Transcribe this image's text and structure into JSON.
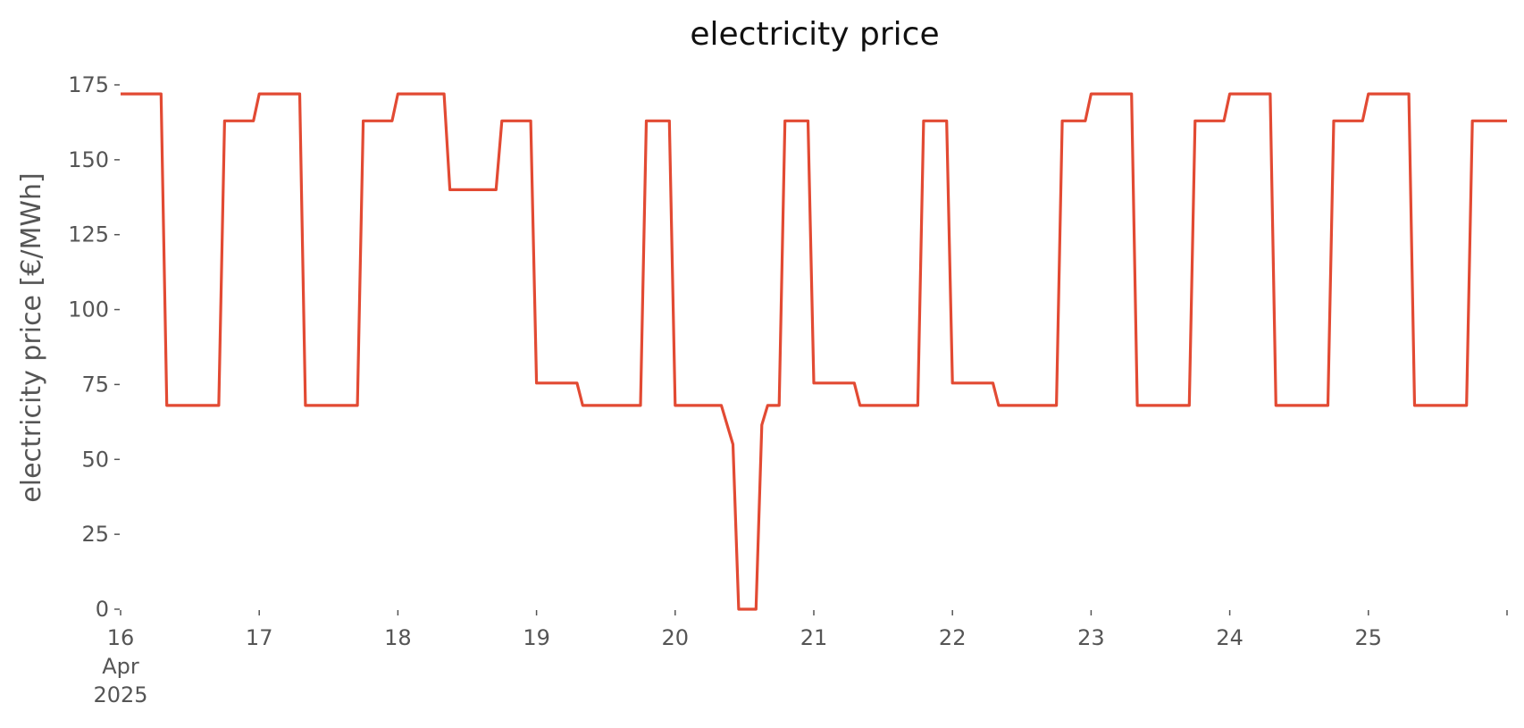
{
  "chart_data": {
    "type": "line",
    "title": "electricity price",
    "xlabel": "",
    "ylabel": "electricity price [€/MWh]",
    "grid": false,
    "legend": "none",
    "line_color": "#e24a33",
    "xlim": [
      "2025-04-16T00:00",
      "2025-04-26T00:00"
    ],
    "ylim": [
      0,
      175
    ],
    "yticks": [
      0,
      25,
      50,
      75,
      100,
      125,
      150,
      175
    ],
    "ytick_labels": [
      "0",
      "25",
      "50",
      "75",
      "100",
      "125",
      "150",
      "175"
    ],
    "xticks": [
      {
        "x": "2025-04-16T00:00",
        "label": [
          "16",
          "Apr",
          "2025"
        ]
      },
      {
        "x": "2025-04-17T00:00",
        "label": [
          "17"
        ]
      },
      {
        "x": "2025-04-18T00:00",
        "label": [
          "18"
        ]
      },
      {
        "x": "2025-04-19T00:00",
        "label": [
          "19"
        ]
      },
      {
        "x": "2025-04-20T00:00",
        "label": [
          "20"
        ]
      },
      {
        "x": "2025-04-21T00:00",
        "label": [
          "21"
        ]
      },
      {
        "x": "2025-04-22T00:00",
        "label": [
          "22"
        ]
      },
      {
        "x": "2025-04-23T00:00",
        "label": [
          "23"
        ]
      },
      {
        "x": "2025-04-24T00:00",
        "label": [
          "24"
        ]
      },
      {
        "x": "2025-04-25T00:00",
        "label": [
          "25"
        ]
      },
      {
        "x": "2025-04-26T00:00",
        "label": []
      }
    ],
    "series": [
      {
        "x": [
          "2025-04-16T00:00",
          "2025-04-16T07:00",
          "2025-04-16T08:00",
          "2025-04-16T17:00",
          "2025-04-16T18:00",
          "2025-04-16T23:00",
          "2025-04-17T00:00",
          "2025-04-17T07:00",
          "2025-04-17T08:00",
          "2025-04-17T17:00",
          "2025-04-17T18:00",
          "2025-04-17T23:00",
          "2025-04-18T00:00",
          "2025-04-18T08:00",
          "2025-04-18T09:00",
          "2025-04-18T17:00",
          "2025-04-18T18:00",
          "2025-04-18T23:00",
          "2025-04-19T00:00",
          "2025-04-19T07:00",
          "2025-04-19T08:00",
          "2025-04-19T18:00",
          "2025-04-19T19:00",
          "2025-04-19T23:00",
          "2025-04-20T00:00",
          "2025-04-20T08:00",
          "2025-04-20T10:00",
          "2025-04-20T11:00",
          "2025-04-20T14:00",
          "2025-04-20T15:00",
          "2025-04-20T16:00",
          "2025-04-20T18:00",
          "2025-04-20T19:00",
          "2025-04-20T23:00",
          "2025-04-21T00:00",
          "2025-04-21T07:00",
          "2025-04-21T08:00",
          "2025-04-21T18:00",
          "2025-04-21T19:00",
          "2025-04-21T23:00",
          "2025-04-22T00:00",
          "2025-04-22T07:00",
          "2025-04-22T08:00",
          "2025-04-22T18:00",
          "2025-04-22T19:00",
          "2025-04-22T23:00",
          "2025-04-23T00:00",
          "2025-04-23T07:00",
          "2025-04-23T08:00",
          "2025-04-23T17:00",
          "2025-04-23T18:00",
          "2025-04-23T23:00",
          "2025-04-24T00:00",
          "2025-04-24T07:00",
          "2025-04-24T08:00",
          "2025-04-24T17:00",
          "2025-04-24T18:00",
          "2025-04-24T23:00",
          "2025-04-25T00:00",
          "2025-04-25T07:00",
          "2025-04-25T08:00",
          "2025-04-25T17:00",
          "2025-04-25T18:00",
          "2025-04-25T23:00",
          "2025-04-26T00:00"
        ],
        "y": [
          172,
          172,
          68,
          68,
          163,
          163,
          172,
          172,
          68,
          68,
          163,
          163,
          172,
          172,
          140,
          140,
          163,
          163,
          75.5,
          75.5,
          68,
          68,
          163,
          163,
          68,
          68,
          55,
          0,
          0,
          61.5,
          68,
          68,
          163,
          163,
          75.5,
          75.5,
          68,
          68,
          163,
          163,
          75.5,
          75.5,
          68,
          68,
          163,
          163,
          172,
          172,
          68,
          68,
          163,
          163,
          172,
          172,
          68,
          68,
          163,
          163,
          172,
          172,
          68,
          68,
          163,
          163,
          163
        ]
      }
    ]
  }
}
